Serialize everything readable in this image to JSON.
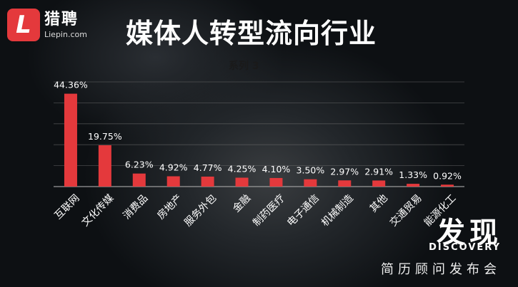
{
  "brand": {
    "name_cn": "猎聘",
    "name_en": "Liepin.com",
    "logo_letter": "L"
  },
  "title": "媒体人转型流向行业",
  "chart_data": {
    "type": "bar",
    "series_name": "系列 3",
    "categories": [
      "互联网",
      "文化传媒",
      "消费品",
      "房地产",
      "服务外包",
      "金融",
      "制药医疗",
      "电子通信",
      "机械制造",
      "其他",
      "交通贸易",
      "能源化工"
    ],
    "values": [
      44.36,
      19.75,
      6.23,
      4.92,
      4.77,
      4.25,
      4.1,
      3.5,
      2.97,
      2.91,
      1.33,
      0.92
    ],
    "labels": [
      "44.36%",
      "19.75%",
      "6.23%",
      "4.92%",
      "4.77%",
      "4.25%",
      "4.10%",
      "3.50%",
      "2.97%",
      "2.91%",
      "1.33%",
      "0.92%"
    ],
    "ylim": [
      0,
      50
    ],
    "grid": true,
    "bar_color": "#e4393c"
  },
  "footer": {
    "big": "发现",
    "en": "DISCOVERY",
    "sub": "简历顾问发布会"
  }
}
